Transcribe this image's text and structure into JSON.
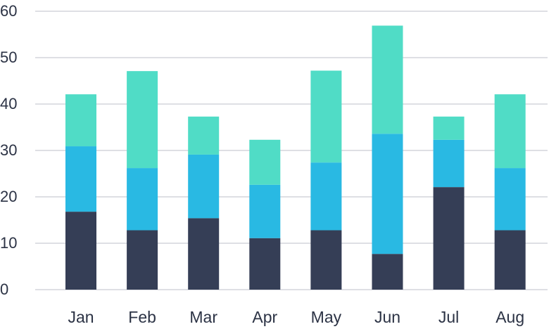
{
  "chart_data": {
    "type": "bar",
    "stacked": true,
    "categories": [
      "Jan",
      "Feb",
      "Mar",
      "Apr",
      "May",
      "Jun",
      "Jul",
      "Aug"
    ],
    "series": [
      {
        "values": [
          16.8,
          12.8,
          15.4,
          11.1,
          12.8,
          7.7,
          22.1,
          12.8
        ],
        "color": "#353e56"
      },
      {
        "values": [
          14.1,
          13.4,
          13.7,
          11.5,
          14.6,
          25.9,
          10.2,
          13.4
        ],
        "color": "#29b9e3"
      },
      {
        "values": [
          11.2,
          20.9,
          8.2,
          9.7,
          19.8,
          23.3,
          5.0,
          15.9
        ],
        "color": "#50dcc6"
      }
    ],
    "ylim": [
      0,
      60
    ],
    "yticks": [
      0,
      10,
      20,
      30,
      40,
      50,
      60
    ],
    "grid": true,
    "legend": false
  }
}
